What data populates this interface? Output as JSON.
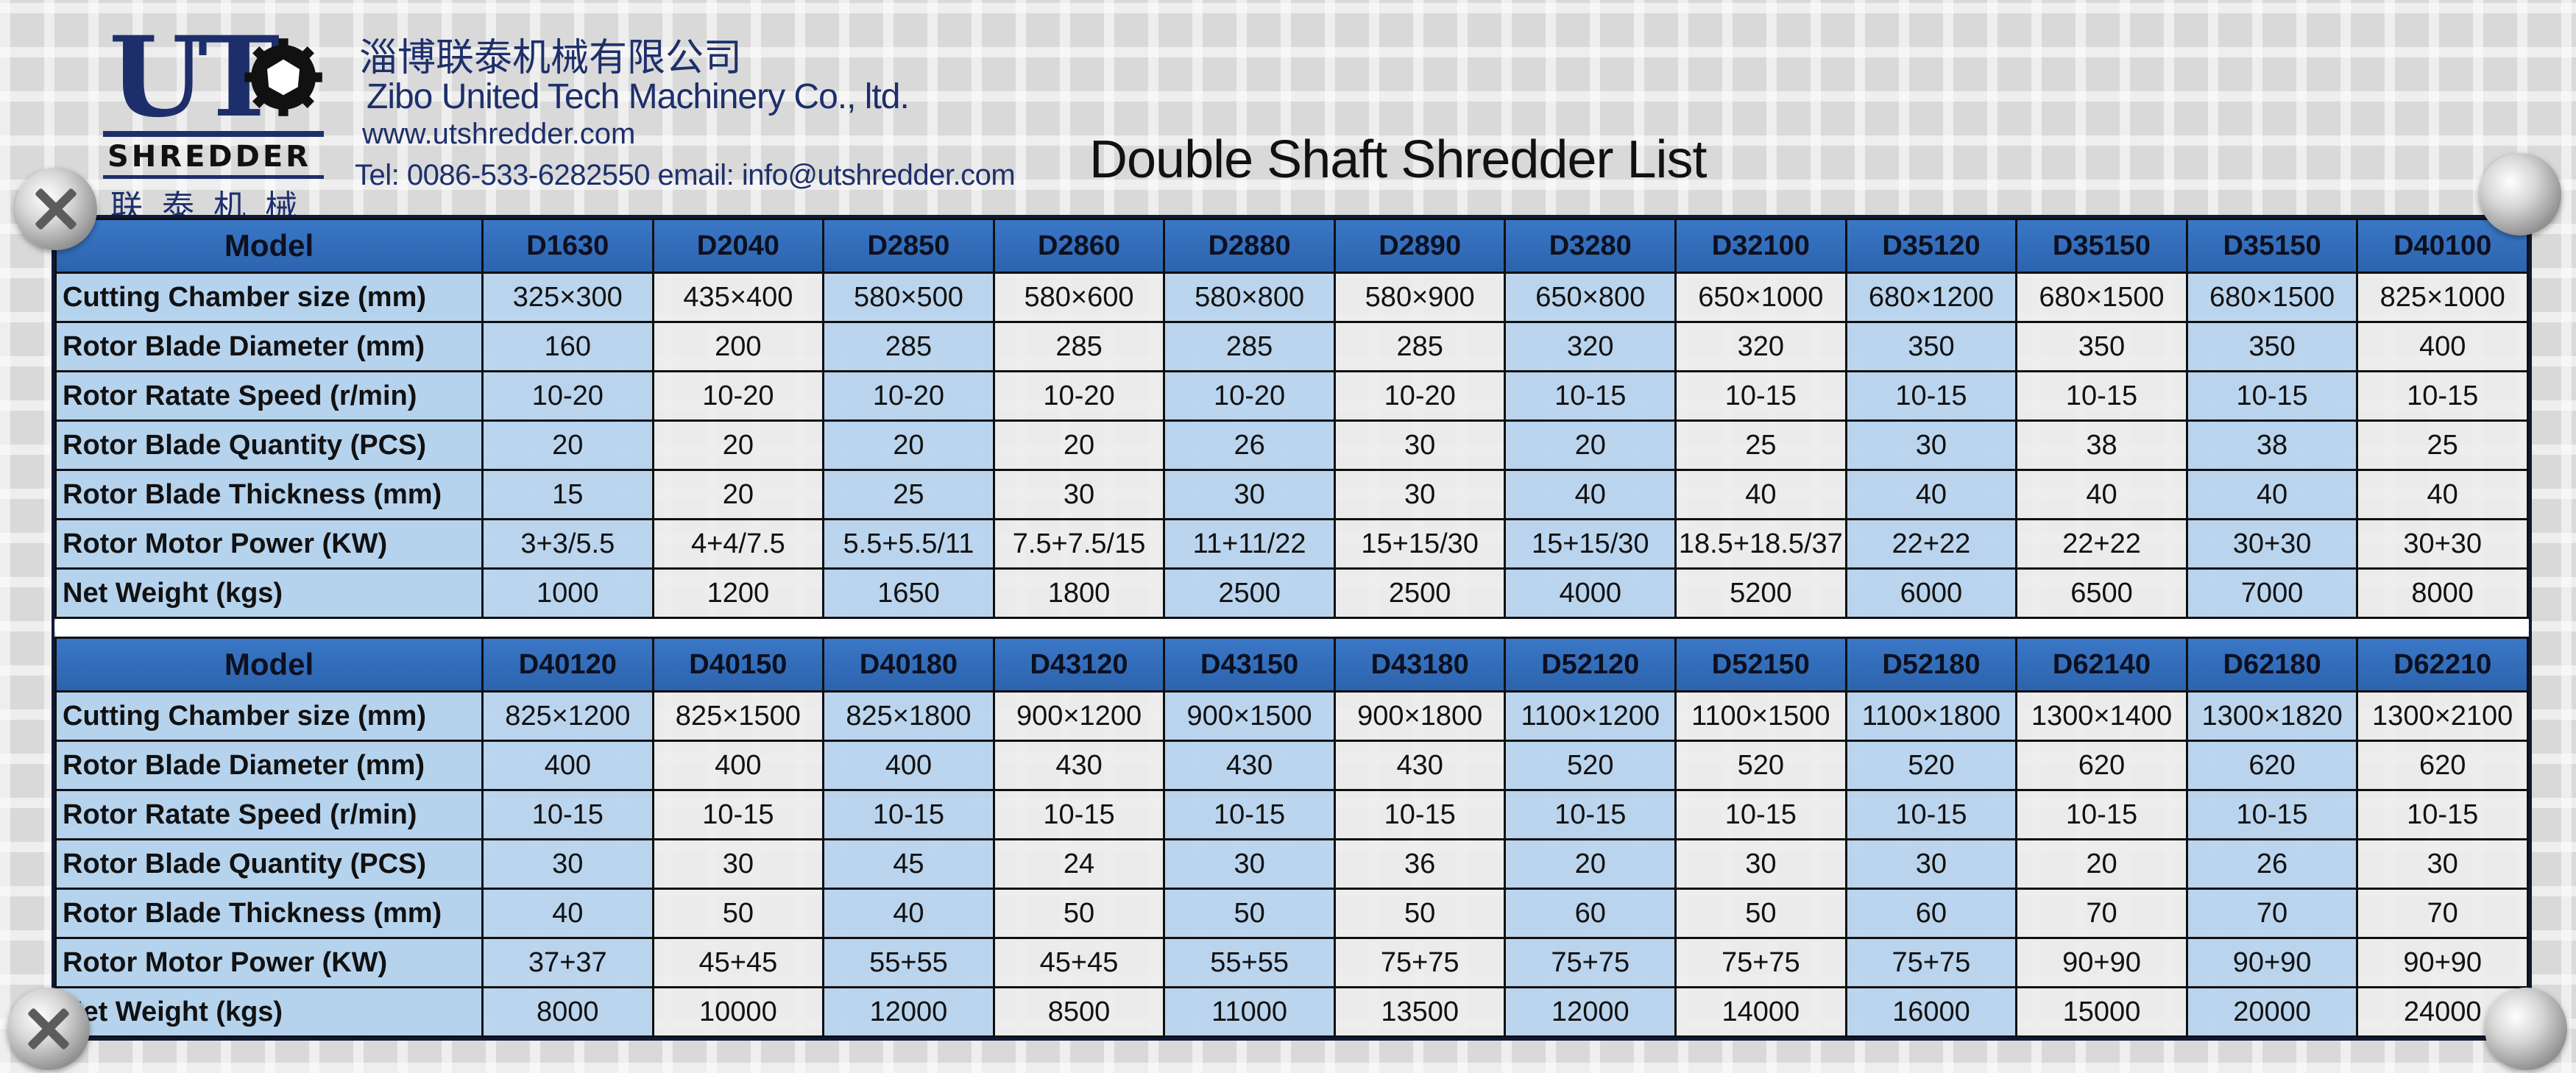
{
  "company": {
    "logo_letters": "UT",
    "logo_word": "SHREDDER",
    "logo_cn": "联泰机械",
    "name_cn": "淄博联泰机械有限公司",
    "name_en": "Zibo United Tech Machinery Co., ltd.",
    "website": "www.utshredder.com",
    "contact": "Tel: 0086-533-6282550 email: info@utshredder.com"
  },
  "title": "Double Shaft Shredder List",
  "tables": [
    {
      "header_label": "Model",
      "models": [
        "D1630",
        "D2040",
        "D2850",
        "D2860",
        "D2880",
        "D2890",
        "D3280",
        "D32100",
        "D35120",
        "D35150",
        "D35150",
        "D40100"
      ],
      "rows": [
        {
          "label": "Cutting Chamber size (mm)",
          "values": [
            "325×300",
            "435×400",
            "580×500",
            "580×600",
            "580×800",
            "580×900",
            "650×800",
            "650×1000",
            "680×1200",
            "680×1500",
            "680×1500",
            "825×1000"
          ]
        },
        {
          "label": "Rotor Blade Diameter (mm)",
          "values": [
            "160",
            "200",
            "285",
            "285",
            "285",
            "285",
            "320",
            "320",
            "350",
            "350",
            "350",
            "400"
          ]
        },
        {
          "label": "Rotor Ratate Speed (r/min)",
          "values": [
            "10-20",
            "10-20",
            "10-20",
            "10-20",
            "10-20",
            "10-20",
            "10-15",
            "10-15",
            "10-15",
            "10-15",
            "10-15",
            "10-15"
          ]
        },
        {
          "label": "Rotor Blade Quantity (PCS)",
          "values": [
            "20",
            "20",
            "20",
            "20",
            "26",
            "30",
            "20",
            "25",
            "30",
            "38",
            "38",
            "25"
          ]
        },
        {
          "label": "Rotor Blade Thickness (mm)",
          "values": [
            "15",
            "20",
            "25",
            "30",
            "30",
            "30",
            "40",
            "40",
            "40",
            "40",
            "40",
            "40"
          ]
        },
        {
          "label": "Rotor Motor Power (KW)",
          "values": [
            "3+3/5.5",
            "4+4/7.5",
            "5.5+5.5/11",
            "7.5+7.5/15",
            "11+11/22",
            "15+15/30",
            "15+15/30",
            "18.5+18.5/37",
            "22+22",
            "22+22",
            "30+30",
            "30+30"
          ]
        },
        {
          "label": "Net Weight (kgs)",
          "values": [
            "1000",
            "1200",
            "1650",
            "1800",
            "2500",
            "2500",
            "4000",
            "5200",
            "6000",
            "6500",
            "7000",
            "8000"
          ]
        }
      ]
    },
    {
      "header_label": "Model",
      "models": [
        "D40120",
        "D40150",
        "D40180",
        "D43120",
        "D43150",
        "D43180",
        "D52120",
        "D52150",
        "D52180",
        "D62140",
        "D62180",
        "D62210"
      ],
      "rows": [
        {
          "label": "Cutting Chamber size (mm)",
          "values": [
            "825×1200",
            "825×1500",
            "825×1800",
            "900×1200",
            "900×1500",
            "900×1800",
            "1100×1200",
            "1100×1500",
            "1100×1800",
            "1300×1400",
            "1300×1820",
            "1300×2100"
          ]
        },
        {
          "label": "Rotor Blade Diameter (mm)",
          "values": [
            "400",
            "400",
            "400",
            "430",
            "430",
            "430",
            "520",
            "520",
            "520",
            "620",
            "620",
            "620"
          ]
        },
        {
          "label": "Rotor Ratate Speed (r/min)",
          "values": [
            "10-15",
            "10-15",
            "10-15",
            "10-15",
            "10-15",
            "10-15",
            "10-15",
            "10-15",
            "10-15",
            "10-15",
            "10-15",
            "10-15"
          ]
        },
        {
          "label": "Rotor Blade Quantity (PCS)",
          "values": [
            "30",
            "30",
            "45",
            "24",
            "30",
            "36",
            "20",
            "30",
            "30",
            "20",
            "26",
            "30"
          ]
        },
        {
          "label": "Rotor Blade Thickness (mm)",
          "values": [
            "40",
            "50",
            "40",
            "50",
            "50",
            "50",
            "60",
            "50",
            "60",
            "70",
            "70",
            "70"
          ]
        },
        {
          "label": "Rotor Motor Power (KW)",
          "values": [
            "37+37",
            "45+45",
            "55+55",
            "45+45",
            "55+55",
            "75+75",
            "75+75",
            "75+75",
            "75+75",
            "90+90",
            "90+90",
            "90+90"
          ]
        },
        {
          "label": "Net Weight (kgs)",
          "values": [
            "8000",
            "10000",
            "12000",
            "8500",
            "11000",
            "13500",
            "12000",
            "14000",
            "16000",
            "15000",
            "20000",
            "24000"
          ]
        }
      ]
    }
  ],
  "colors": {
    "header_blue": "#2f6ab5",
    "cell_blue": "#b6d3ee",
    "cell_light": "#ececec",
    "brand_navy": "#1d2f6b"
  }
}
